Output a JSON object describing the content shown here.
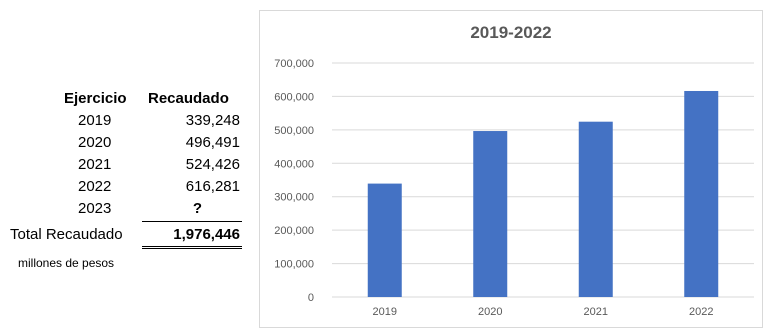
{
  "table": {
    "header_year": "Ejercicio",
    "header_value": "Recaudado",
    "rows": [
      {
        "year": "2019",
        "value": "339,248"
      },
      {
        "year": "2020",
        "value": "496,491"
      },
      {
        "year": "2021",
        "value": "524,426"
      },
      {
        "year": "2022",
        "value": "616,281"
      },
      {
        "year": "2023",
        "value": "?"
      }
    ],
    "total_label": "Total Recaudado",
    "total_value": "1,976,446",
    "units": "millones de pesos"
  },
  "chart_data": {
    "type": "bar",
    "title": "2019-2022",
    "categories": [
      "2019",
      "2020",
      "2021",
      "2022"
    ],
    "values": [
      339248,
      496491,
      524426,
      616281
    ],
    "ylim": [
      0,
      700000
    ],
    "yticks": [
      "0",
      "100,000",
      "200,000",
      "300,000",
      "400,000",
      "500,000",
      "600,000",
      "700,000"
    ],
    "grid": true,
    "bar_color": "#4472c4",
    "grid_color": "#d9d9d9"
  }
}
